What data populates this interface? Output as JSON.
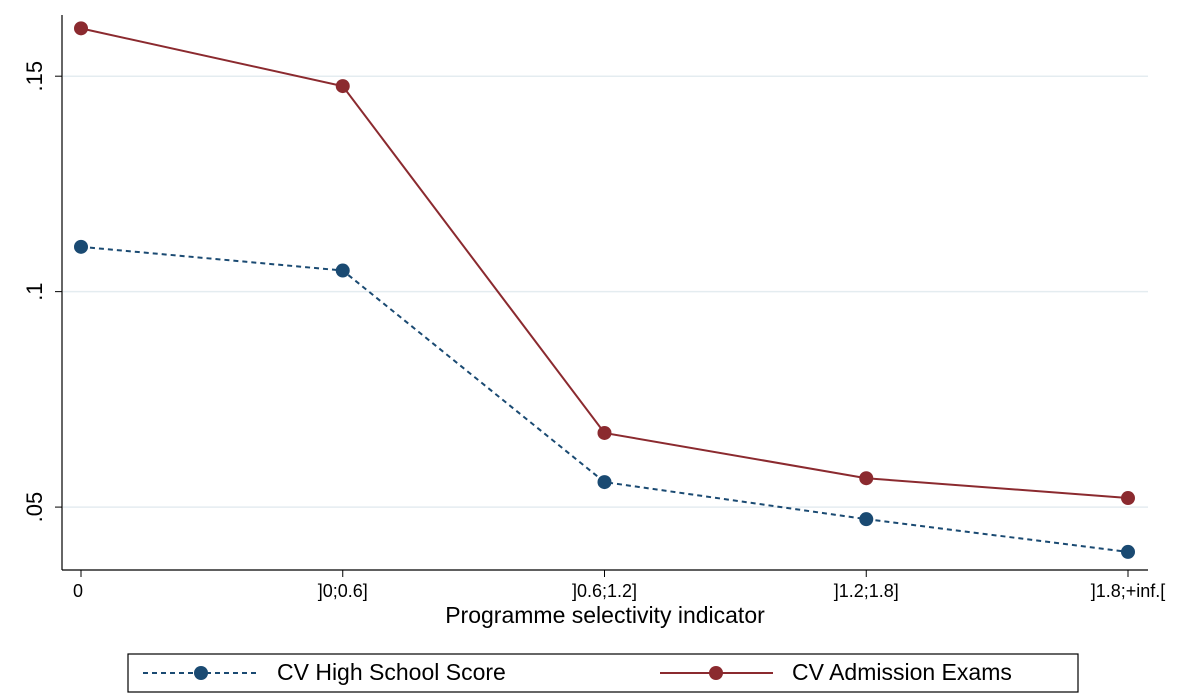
{
  "chart_data": {
    "type": "line",
    "x_label": "Programme selectivity indicator",
    "categories": [
      "0",
      "]0;0.6]",
      "]0.6;1.2]",
      "]1.2;1.8]",
      "]1.8;+inf.["
    ],
    "series": [
      {
        "name": "CV High School Score",
        "color": "#1a4a72",
        "dash": true,
        "values": [
          0.1104,
          0.1049,
          0.0558,
          0.0472,
          0.0396
        ]
      },
      {
        "name": "CV Admission Exams",
        "color": "#8b2a2f",
        "dash": false,
        "values": [
          0.1611,
          0.1477,
          0.0672,
          0.0567,
          0.0521
        ]
      }
    ],
    "ylim": [
      0.0354,
      0.1642
    ],
    "yticks": [
      {
        "value": 0.05,
        "label": ".05"
      },
      {
        "value": 0.1,
        "label": ".1"
      },
      {
        "value": 0.15,
        "label": ".15"
      }
    ],
    "grid": true
  }
}
